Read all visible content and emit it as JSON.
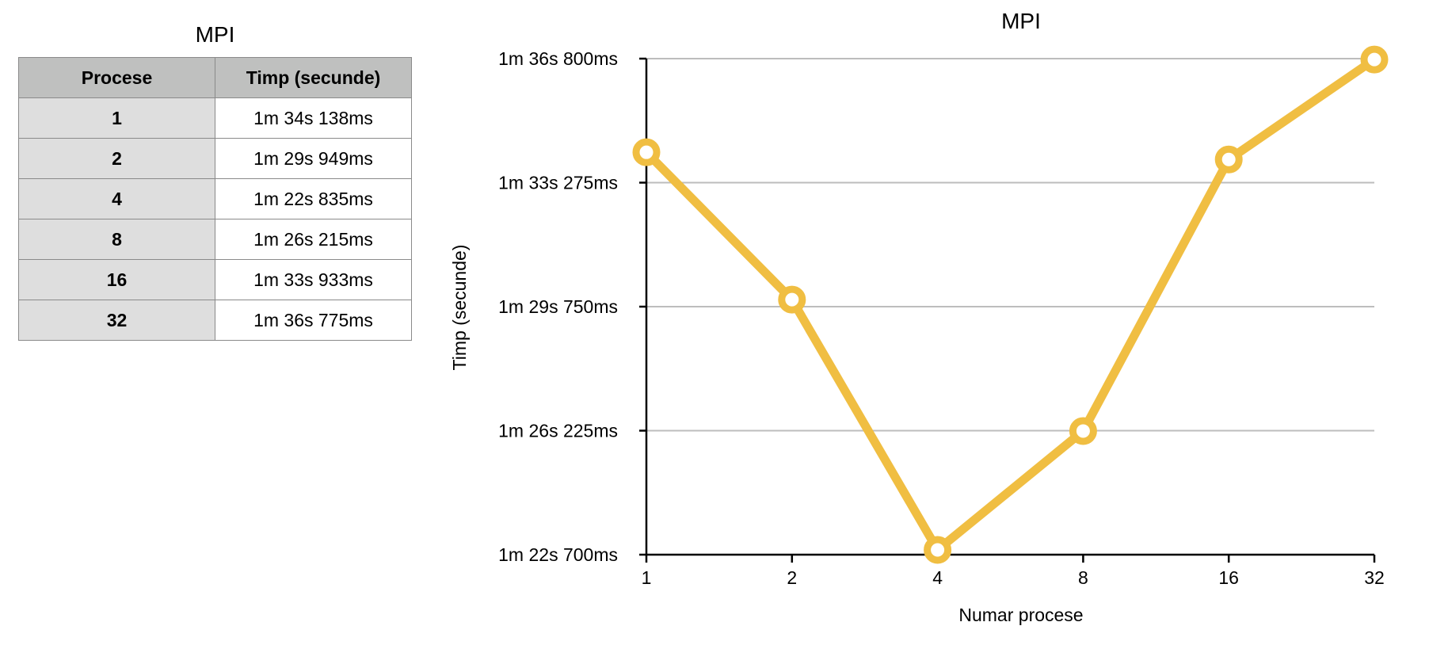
{
  "table": {
    "title": "MPI",
    "headers": [
      "Procese",
      "Timp (secunde)"
    ],
    "rows": [
      [
        "1",
        "1m 34s 138ms"
      ],
      [
        "2",
        "1m 29s 949ms"
      ],
      [
        "4",
        "1m 22s 835ms"
      ],
      [
        "8",
        "1m 26s 215ms"
      ],
      [
        "16",
        "1m 33s 933ms"
      ],
      [
        "32",
        "1m 36s 775ms"
      ]
    ],
    "header_color": "#bfc0bf",
    "first_column_color": "#dedede"
  },
  "chart_data": {
    "type": "line",
    "title": "MPI",
    "xlabel": "Numar procese",
    "ylabel": "Timp (secunde)",
    "categories": [
      "1",
      "2",
      "4",
      "8",
      "16",
      "32"
    ],
    "series": [
      {
        "values": [
          94.138,
          89.949,
          82.835,
          86.215,
          93.933,
          96.775
        ],
        "color": "#f0be42"
      }
    ],
    "yticks": [
      82.7,
      86.225,
      89.75,
      93.275,
      96.8
    ],
    "ytick_labels": [
      "1m 22s 700ms",
      "1m 26s 225ms",
      "1m 29s 750ms",
      "1m 33s 275ms",
      "1m 36s 800ms"
    ],
    "ylim": [
      82.7,
      96.8
    ],
    "grid": true,
    "legend": "none",
    "colors": {
      "grid": "#bdbdbd",
      "axis": "#000000"
    }
  }
}
